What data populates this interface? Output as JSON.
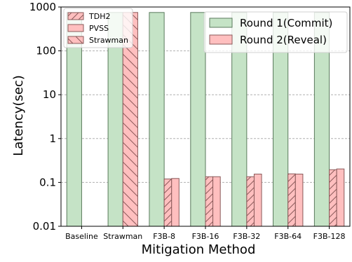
{
  "chart_data": {
    "type": "bar",
    "xlabel": "Mitigation Method",
    "ylabel": "Latency(sec)",
    "yscale": "log",
    "ylim": [
      0.01,
      1000
    ],
    "yticks": [
      {
        "value": 1000,
        "label": "1000"
      },
      {
        "value": 100,
        "label": "100"
      },
      {
        "value": 10,
        "label": "10"
      },
      {
        "value": 1,
        "label": "1"
      },
      {
        "value": 0.1,
        "label": "0.1"
      },
      {
        "value": 0.01,
        "label": "0.01"
      }
    ],
    "grid": "horizontal dashed",
    "categories": [
      "Baseline",
      "Strawman",
      "F3B-8",
      "F3B-16",
      "F3B-32",
      "F3B-64",
      "F3B-128"
    ],
    "series": [
      {
        "name": "Round 1(Commit)",
        "color": "#c5e3c6",
        "edge": "#5a7a5c",
        "values": [
          750,
          750,
          750,
          750,
          750,
          750,
          750
        ]
      },
      {
        "name": "Round 2(Reveal)",
        "color": "#ffbfbf",
        "edge": "#8a5a5a",
        "values": [
          null,
          750,
          0.12,
          0.135,
          0.135,
          0.155,
          0.195
        ]
      }
    ],
    "pattern_segments": [
      {
        "category": "Strawman",
        "values": [
          750
        ],
        "pattern": "backslash"
      },
      {
        "category": "F3B-8",
        "values": [
          0.12,
          0.123
        ],
        "pattern": [
          "slash",
          "none"
        ]
      },
      {
        "category": "F3B-16",
        "values": [
          0.135,
          0.135
        ],
        "pattern": [
          "slash",
          "none"
        ]
      },
      {
        "category": "F3B-32",
        "values": [
          0.135,
          0.155
        ],
        "pattern": [
          "slash",
          "none"
        ]
      },
      {
        "category": "F3B-64",
        "values": [
          0.157,
          0.155
        ],
        "pattern": [
          "slash",
          "none"
        ]
      },
      {
        "category": "F3B-128",
        "values": [
          0.195,
          0.203
        ],
        "pattern": [
          "slash",
          "none"
        ]
      }
    ],
    "legend_components": {
      "placement": "top-left",
      "items": [
        {
          "label": "TDH2",
          "pattern": "slash"
        },
        {
          "label": "PVSS",
          "pattern": "none"
        },
        {
          "label": "Strawman",
          "pattern": "backslash"
        }
      ]
    },
    "legend_rounds": {
      "placement": "top-right",
      "items": [
        {
          "label": "Round 1(Commit)",
          "color": "#c5e3c6"
        },
        {
          "label": "Round 2(Reveal)",
          "color": "#ffbfbf"
        }
      ]
    }
  }
}
